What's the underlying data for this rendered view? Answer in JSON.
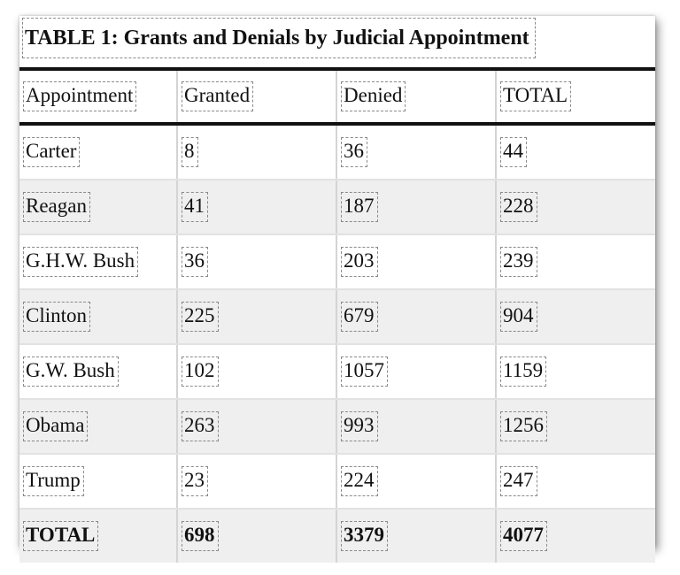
{
  "title": "TABLE 1: Grants and Denials by Judicial Appointment",
  "columns": [
    "Appointment",
    "Granted",
    "Denied",
    "TOTAL"
  ],
  "rows": [
    [
      "Carter",
      "8",
      "36",
      "44"
    ],
    [
      "Reagan",
      "41",
      "187",
      "228"
    ],
    [
      "G.H.W. Bush",
      "36",
      "203",
      "239"
    ],
    [
      "Clinton",
      "225",
      "679",
      "904"
    ],
    [
      "G.W. Bush",
      "102",
      "1057",
      "1159"
    ],
    [
      "Obama",
      "263",
      "993",
      "1256"
    ],
    [
      "Trump",
      "23",
      "224",
      "247"
    ]
  ],
  "total": [
    "TOTAL",
    "698",
    "3379",
    "4077"
  ],
  "colors": {
    "rule": "#111111",
    "stripe": "#efefef",
    "cell_outline": "#8a8a8a"
  }
}
